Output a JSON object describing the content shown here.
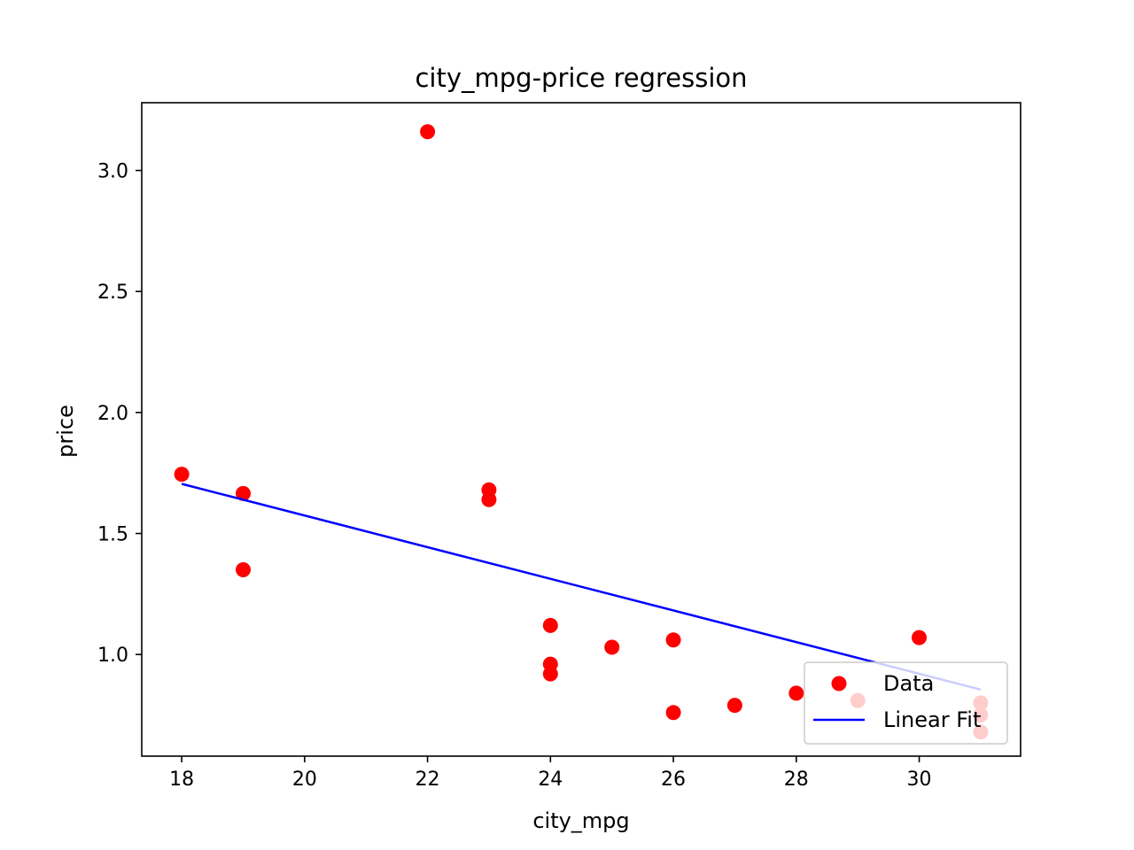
{
  "chart_data": {
    "type": "scatter",
    "title": "city_mpg-price regression",
    "xlabel": "city_mpg",
    "ylabel": "price",
    "xlim": [
      17.35,
      31.65
    ],
    "ylim": [
      0.58,
      3.28
    ],
    "xticks": [
      "18",
      "20",
      "22",
      "24",
      "26",
      "28",
      "30"
    ],
    "yticks": [
      "1.0",
      "1.5",
      "2.0",
      "2.5",
      "3.0"
    ],
    "grid": false,
    "legend_position": "lower-right",
    "series": [
      {
        "name": "Data",
        "kind": "points",
        "color": "#ff0000",
        "points": [
          [
            18,
            1.745
          ],
          [
            19,
            1.665
          ],
          [
            19,
            1.35
          ],
          [
            22,
            3.16
          ],
          [
            23,
            1.68
          ],
          [
            23,
            1.64
          ],
          [
            24,
            1.12
          ],
          [
            24,
            0.96
          ],
          [
            24,
            0.92
          ],
          [
            25,
            1.03
          ],
          [
            26,
            1.06
          ],
          [
            26,
            0.76
          ],
          [
            27,
            0.79
          ],
          [
            28,
            0.84
          ],
          [
            29,
            0.81
          ],
          [
            30,
            1.07
          ],
          [
            31,
            0.8
          ],
          [
            31,
            0.75
          ],
          [
            31,
            0.68
          ]
        ]
      },
      {
        "name": "Linear Fit",
        "kind": "line",
        "color": "#0000ff",
        "points": [
          [
            18,
            1.705
          ],
          [
            31,
            0.855
          ]
        ]
      }
    ]
  }
}
